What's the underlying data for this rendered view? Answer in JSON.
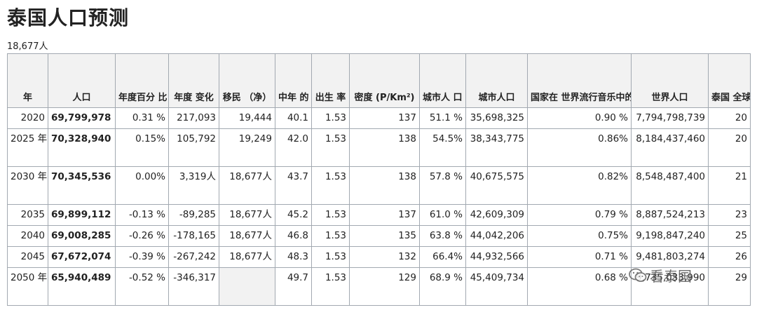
{
  "title": "泰国人口预测",
  "subtitle": "18,677人",
  "table": {
    "headers": [
      "年",
      "人口",
      "年度百分\n比\n变化",
      "年度\n变化",
      "移民\n（净）",
      "中年\n的",
      "出生\n率",
      "密度\n(P/Km²)",
      "城市人\n口\n百分比",
      "城市人口",
      "国家在\n世界流行音乐中的份\n额",
      "世界人口",
      "泰国\n全球排\n名"
    ],
    "rows": [
      {
        "year": "2020",
        "pop": "69,799,978",
        "pct": "0.31 %",
        "chg": "217,093",
        "mig": "19,444",
        "age": "40.1",
        "fert": "1.53",
        "dens": "137",
        "urbpct": "51.1 %",
        "urb": "35,698,325",
        "share": "0.90 %",
        "world": "7,794,798,739",
        "rank": "20"
      },
      {
        "year": "2025\n年",
        "pop": "70,328,940",
        "pct": "0.15%",
        "chg": "105,792",
        "mig": "19,249",
        "age": "42.0",
        "fert": "1.53",
        "dens": "138",
        "urbpct": "54.5%",
        "urb": "38,343,775",
        "share": "0.86%",
        "world": "8,184,437,460",
        "rank": "20"
      },
      {
        "year": "2030\n年",
        "pop": "70,345,536",
        "pct": "0.00%",
        "chg": "3,319人",
        "mig": "18,677人",
        "age": "43.7",
        "fert": "1.53",
        "dens": "138",
        "urbpct": "57.8 %",
        "urb": "40,675,575",
        "share": "0.82%",
        "world": "8,548,487,400",
        "rank": "21"
      },
      {
        "year": "2035",
        "pop": "69,899,112",
        "pct": "-0.13 %",
        "chg": "-89,285",
        "mig": "18,677人",
        "age": "45.2",
        "fert": "1.53",
        "dens": "137",
        "urbpct": "61.0 %",
        "urb": "42,609,309",
        "share": "0.79 %",
        "world": "8,887,524,213",
        "rank": "23"
      },
      {
        "year": "2040",
        "pop": "69,008,285",
        "pct": "-0.26 %",
        "chg": "-178,165",
        "mig": "18,677人",
        "age": "46.8",
        "fert": "1.53",
        "dens": "135",
        "urbpct": "63.8 %",
        "urb": "44,042,206",
        "share": "0.75%",
        "world": "9,198,847,240",
        "rank": "25"
      },
      {
        "year": "2045",
        "pop": "67,672,074",
        "pct": "-0.39 %",
        "chg": "-267,242",
        "mig": "18,677人",
        "age": "48.3",
        "fert": "1.53",
        "dens": "132",
        "urbpct": "66.4%",
        "urb": "44,932,566",
        "share": "0.71 %",
        "world": "9,481,803,274",
        "rank": "26"
      },
      {
        "year": "2050\n年",
        "pop": "65,940,489",
        "pct": "-0.52 %",
        "chg": "-346,317",
        "mig": "",
        "age": "49.7",
        "fert": "1.53",
        "dens": "129",
        "urbpct": "68.9 %",
        "urb": "45,409,734",
        "share": "0.68 %",
        "world": "9,735,033,990",
        "rank": "29"
      }
    ]
  },
  "watermark": "看泰国"
}
